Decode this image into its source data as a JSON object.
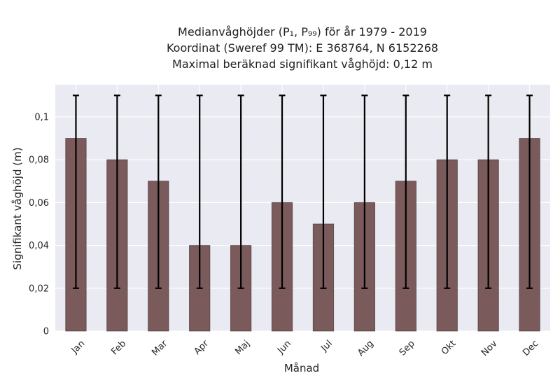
{
  "chart_data": {
    "type": "bar",
    "title_lines": [
      "Medianvåghöjder (P₁, P₉₉) för år 1979 - 2019",
      "Koordinat (Sweref 99 TM): E 368764, N 6152268",
      "Maximal beräknad signifikant våghöjd: 0,12 m"
    ],
    "xlabel": "Månad",
    "ylabel": "Signifikant våghöjd (m)",
    "categories": [
      "Jan",
      "Feb",
      "Mar",
      "Apr",
      "Maj",
      "Jun",
      "Jul",
      "Aug",
      "Sep",
      "Okt",
      "Nov",
      "Dec"
    ],
    "values": [
      0.09,
      0.08,
      0.07,
      0.04,
      0.04,
      0.06,
      0.05,
      0.06,
      0.07,
      0.08,
      0.08,
      0.09
    ],
    "error_low": [
      0.02,
      0.02,
      0.02,
      0.02,
      0.02,
      0.02,
      0.02,
      0.02,
      0.02,
      0.02,
      0.02,
      0.02
    ],
    "error_high": [
      0.11,
      0.11,
      0.11,
      0.11,
      0.11,
      0.11,
      0.11,
      0.11,
      0.11,
      0.11,
      0.11,
      0.11
    ],
    "ylim": [
      0,
      0.115
    ],
    "yticks": [
      0,
      0.02,
      0.04,
      0.06,
      0.08,
      0.1
    ],
    "ytick_labels": [
      "0",
      "0,02",
      "0,04",
      "0,06",
      "0,08",
      "0,1"
    ],
    "grid": true,
    "bar_color": "#7a5a5a",
    "plot_background": "#eaeaf2",
    "grid_color": "#ffffff",
    "errorbar_color": "#000000"
  }
}
